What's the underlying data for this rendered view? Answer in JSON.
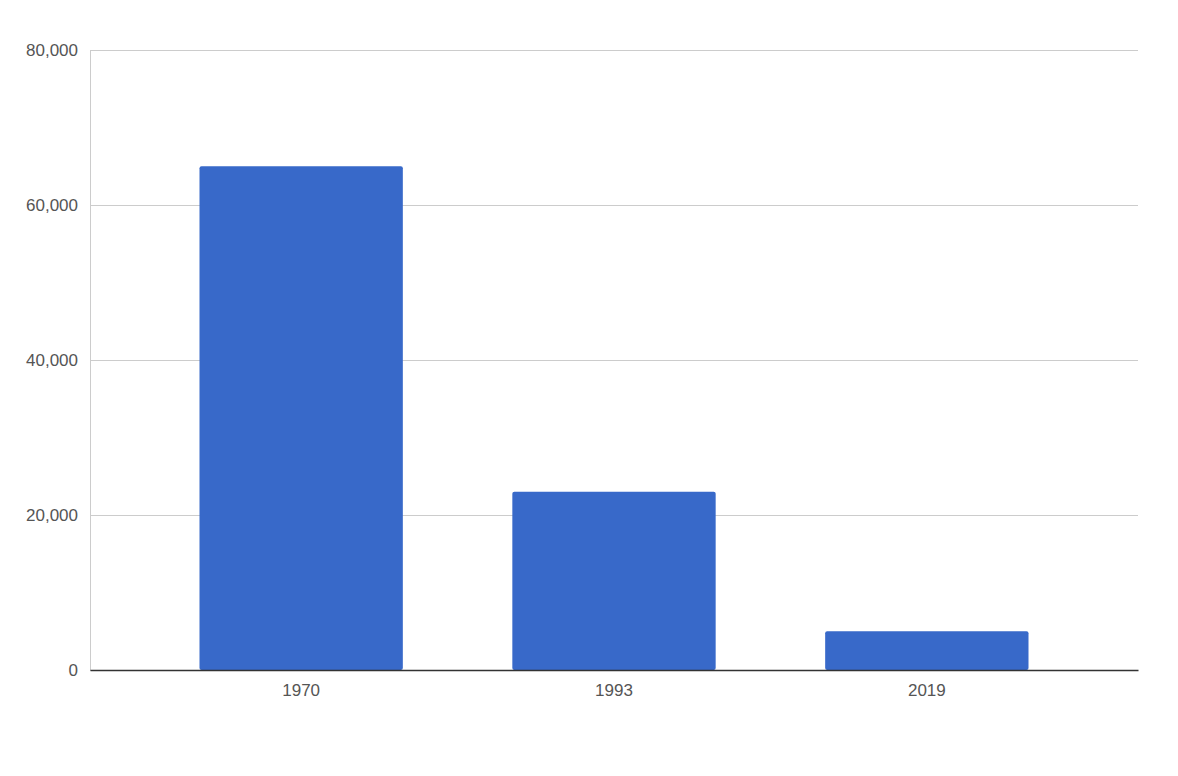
{
  "chart_data": {
    "type": "bar",
    "categories": [
      "1970",
      "1993",
      "2019"
    ],
    "values": [
      65000,
      23000,
      5000
    ],
    "color": "#3869c9",
    "ylim": [
      0,
      80000
    ],
    "yticks": [
      0,
      {
        "value": 20000,
        "label": "20,000"
      },
      {
        "value": 40000,
        "label": "40,000"
      },
      {
        "value": 60000,
        "label": "60,000"
      },
      {
        "value": 80000,
        "label": "80,000"
      }
    ],
    "grid": true
  }
}
